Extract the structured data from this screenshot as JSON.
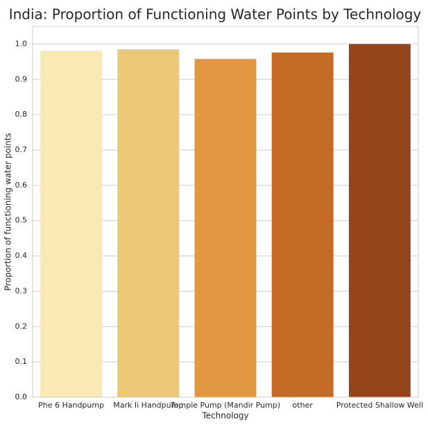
{
  "chart_data": {
    "type": "bar",
    "title": "India: Proportion of Functioning Water Points by Technology",
    "xlabel": "Technology",
    "ylabel": "Proportion of functioning water points",
    "categories": [
      "Phe 6 Handpump",
      "Mark Ii Handpump",
      "Temple Pump (Mandir Pump)",
      "other",
      "Protected Shallow Well"
    ],
    "values": [
      0.981,
      0.985,
      0.958,
      0.976,
      1.0
    ],
    "colors": [
      "#f7e8b4",
      "#ecc776",
      "#e29741",
      "#c56a27",
      "#94441a"
    ],
    "ylim": [
      0.0,
      1.05
    ],
    "yticks": [
      "0.0",
      "0.1",
      "0.2",
      "0.3",
      "0.4",
      "0.5",
      "0.6",
      "0.7",
      "0.8",
      "0.9",
      "1.0"
    ],
    "grid": true,
    "legend": "none"
  }
}
